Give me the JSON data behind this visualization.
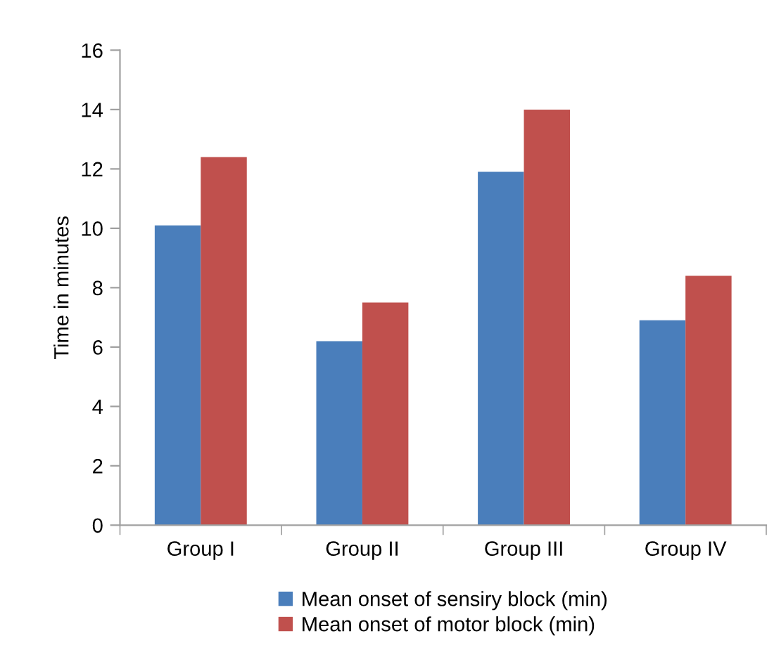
{
  "chart_data": {
    "type": "bar",
    "ylabel": "Time in minutes",
    "categories": [
      "Group I",
      "Group II",
      "Group III",
      "Group IV"
    ],
    "series": [
      {
        "name": "Mean onset of sensiry block (min)",
        "color": "#4a7ebb",
        "values": [
          10.1,
          6.2,
          11.9,
          6.9
        ]
      },
      {
        "name": "Mean onset of motor block (min)",
        "color": "#c0504d",
        "values": [
          12.4,
          7.5,
          14.0,
          8.4
        ]
      }
    ],
    "ylim": [
      0,
      16
    ],
    "yticks": [
      0,
      2,
      4,
      6,
      8,
      10,
      12,
      14,
      16
    ],
    "grid": false,
    "legend": "bottom"
  }
}
